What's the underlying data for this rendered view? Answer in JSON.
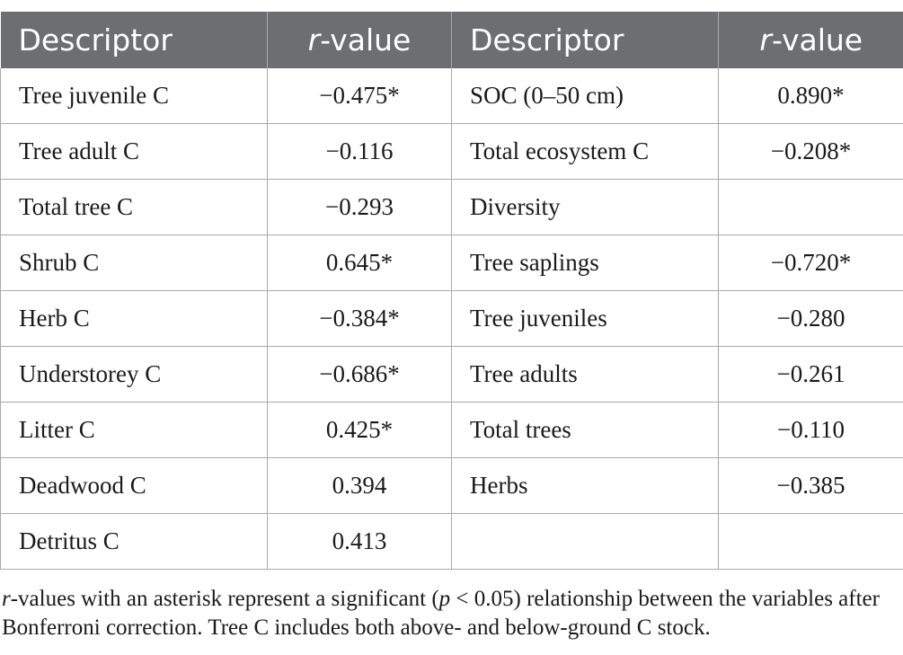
{
  "table": {
    "headers": {
      "descriptor_left": "Descriptor",
      "r_italic": "r",
      "r_suffix": "-value",
      "descriptor_right": "Descriptor"
    },
    "rows": [
      {
        "left_label": "Tree juvenile C",
        "left_value": "−0.475*",
        "right_label": "SOC (0–50 cm)",
        "right_value": "0.890*"
      },
      {
        "left_label": "Tree adult C",
        "left_value": "−0.116",
        "right_label": "Total ecosystem C",
        "right_value": "−0.208*"
      },
      {
        "left_label": "Total tree C",
        "left_value": "−0.293",
        "right_label": "Diversity",
        "right_value": ""
      },
      {
        "left_label": "Shrub C",
        "left_value": "0.645*",
        "right_label": "Tree saplings",
        "right_value": "−0.720*"
      },
      {
        "left_label": "Herb C",
        "left_value": "−0.384*",
        "right_label": "Tree juveniles",
        "right_value": "−0.280"
      },
      {
        "left_label": "Understorey C",
        "left_value": "−0.686*",
        "right_label": "Tree adults",
        "right_value": "−0.261"
      },
      {
        "left_label": "Litter C",
        "left_value": "0.425*",
        "right_label": "Total trees",
        "right_value": "−0.110"
      },
      {
        "left_label": "Deadwood C",
        "left_value": "0.394",
        "right_label": "Herbs",
        "right_value": "−0.385"
      },
      {
        "left_label": "Detritus C",
        "left_value": "0.413",
        "right_label": "",
        "right_value": ""
      }
    ]
  },
  "footnote": {
    "r_italic": "r",
    "part1": "-values with an asterisk represent a significant (",
    "p_italic": "p",
    "part2": " < 0.05) relationship between the variables after Bonferroni correction. Tree C includes both above- and below-ground C stock."
  }
}
